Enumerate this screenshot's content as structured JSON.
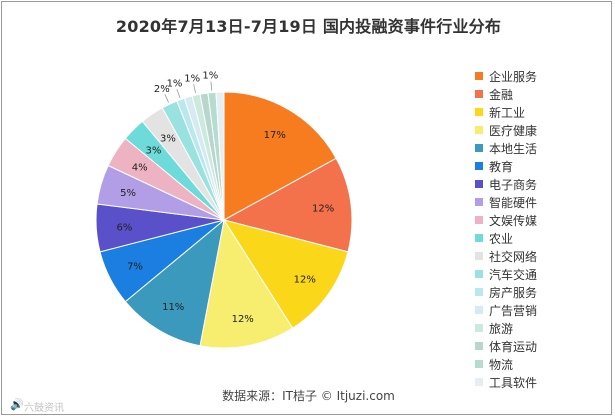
{
  "chart_data": {
    "type": "pie",
    "title": "2020年7月13日-7月19日 国内投融资事件行业分布",
    "slices": [
      {
        "label": "企业服务",
        "value": 17,
        "display": "17%",
        "color": "#f77c1f"
      },
      {
        "label": "金融",
        "value": 12,
        "display": "12%",
        "color": "#f3724b"
      },
      {
        "label": "新工业",
        "value": 12,
        "display": "12%",
        "color": "#fbd71a"
      },
      {
        "label": "医疗健康",
        "value": 12,
        "display": "12%",
        "color": "#f7ee70"
      },
      {
        "label": "本地生活",
        "value": 11,
        "display": "11%",
        "color": "#3a99bd"
      },
      {
        "label": "教育",
        "value": 7,
        "display": "7%",
        "color": "#1a7fe0"
      },
      {
        "label": "电子商务",
        "value": 6,
        "display": "6%",
        "color": "#5a50c9"
      },
      {
        "label": "智能硬件",
        "value": 5,
        "display": "5%",
        "color": "#b19ee6"
      },
      {
        "label": "文娱传媒",
        "value": 4,
        "display": "4%",
        "color": "#eeb3c2"
      },
      {
        "label": "农业",
        "value": 3,
        "display": "3%",
        "color": "#6ddbd9"
      },
      {
        "label": "社交网络",
        "value": 3,
        "display": "3%",
        "color": "#e3e3e3"
      },
      {
        "label": "汽车交通",
        "value": 2,
        "display": "2%",
        "color": "#9ae2e0"
      },
      {
        "label": "房产服务",
        "value": 1,
        "display": "1%",
        "color": "#b9e8ef"
      },
      {
        "label": "广告营销",
        "value": 1,
        "display": "",
        "color": "#d6eaf2"
      },
      {
        "label": "旅游",
        "value": 1,
        "display": "1%",
        "color": "#cbe9dc"
      },
      {
        "label": "体育运动",
        "value": 1,
        "display": "",
        "color": "#b9d6cc"
      },
      {
        "label": "物流",
        "value": 1,
        "display": "1%",
        "color": "#b4ddd0"
      },
      {
        "label": "工具软件",
        "value": 1,
        "display": "",
        "color": "#e6eef3"
      }
    ],
    "legend": "right",
    "start_angle": "top, clockwise"
  },
  "source_text": "数据来源：IT桔子 © Itjuzi.com",
  "watermark_text": "六鼓资讯",
  "watermark_icon": "sound-wave-icon",
  "colors": {
    "label_text": "#222222",
    "slice_stroke": "#ffffff"
  }
}
